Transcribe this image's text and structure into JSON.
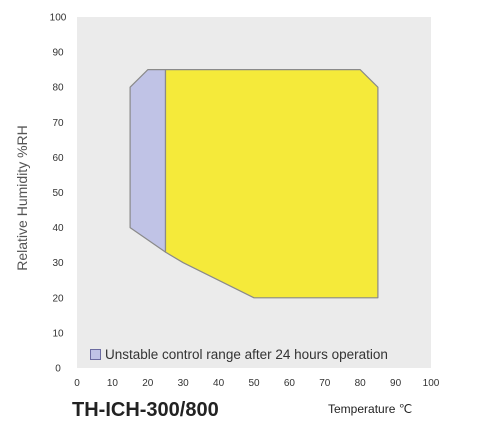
{
  "chart_data": {
    "type": "area",
    "model": "TH-ICH-300/800",
    "xlabel": "Temperature",
    "xunit": "℃",
    "ylabel": "Relative Humidity %RH",
    "xlim": [
      0,
      100
    ],
    "ylim": [
      0,
      100
    ],
    "x_ticks": [
      0,
      10,
      20,
      30,
      40,
      50,
      60,
      70,
      80,
      90,
      100
    ],
    "y_ticks": [
      0,
      10,
      20,
      30,
      40,
      50,
      60,
      70,
      80,
      90,
      100
    ],
    "grid": false,
    "legend_position": "bottom-left",
    "regions": [
      {
        "name": "Unstable control range after 24 hours operation",
        "color": "#c0c3e6",
        "points": [
          [
            15,
            40
          ],
          [
            15,
            80
          ],
          [
            20,
            85
          ],
          [
            25,
            85
          ],
          [
            25,
            33
          ]
        ]
      },
      {
        "name": "",
        "color": "#f5ea3a",
        "points": [
          [
            25,
            33
          ],
          [
            25,
            85
          ],
          [
            80,
            85
          ],
          [
            85,
            80
          ],
          [
            85,
            20
          ],
          [
            50,
            20
          ],
          [
            30,
            30
          ]
        ]
      }
    ],
    "colors": {
      "plot_background": "#ebebeb",
      "outline": "#8a8a8a"
    }
  }
}
